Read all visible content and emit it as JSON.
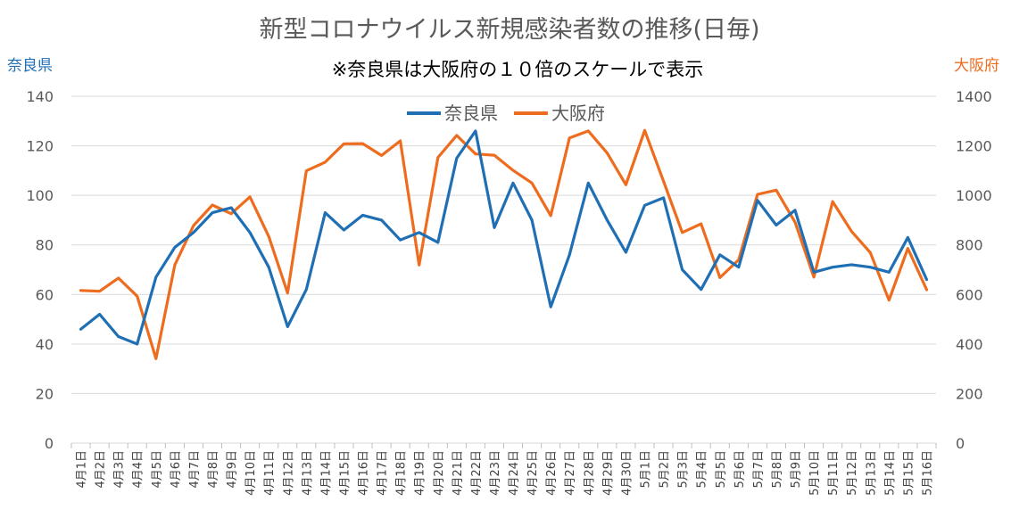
{
  "chart_data": {
    "type": "line",
    "title": "新型コロナウイルス新規感染者数の推移(日毎)",
    "subtitle": "※奈良県は大阪府の１０倍のスケールで表示",
    "y_left_label": "奈良県",
    "y_right_label": "大阪府",
    "y_left_ticks": [
      "0",
      "20",
      "40",
      "60",
      "80",
      "100",
      "120",
      "140"
    ],
    "y_right_ticks": [
      "0",
      "200",
      "400",
      "600",
      "800",
      "1000",
      "1200",
      "1400"
    ],
    "ylim_left": [
      0,
      140
    ],
    "ylim_right": [
      0,
      1400
    ],
    "grid": true,
    "legend_position": "top",
    "categories": [
      "4月1日",
      "4月2日",
      "4月3日",
      "4月4日",
      "4月5日",
      "4月6日",
      "4月7日",
      "4月8日",
      "4月9日",
      "4月10日",
      "4月11日",
      "4月12日",
      "4月13日",
      "4月14日",
      "4月15日",
      "4月16日",
      "4月17日",
      "4月18日",
      "4月19日",
      "4月20日",
      "4月21日",
      "4月22日",
      "4月23日",
      "4月24日",
      "4月25日",
      "4月26日",
      "4月27日",
      "4月28日",
      "4月29日",
      "4月30日",
      "5月1日",
      "5月2日",
      "5月3日",
      "5月4日",
      "5月5日",
      "5月6日",
      "5月7日",
      "5月8日",
      "5月9日",
      "5月10日",
      "5月11日",
      "5月12日",
      "5月13日",
      "5月14日",
      "5月15日",
      "5月16日"
    ],
    "series": [
      {
        "name": "奈良県",
        "axis": "left",
        "color": "#1f6fb4",
        "values": [
          46,
          52,
          43,
          40,
          67,
          79,
          85,
          93,
          95,
          85,
          71,
          47,
          62,
          93,
          86,
          92,
          90,
          82,
          85,
          81,
          115,
          126,
          87,
          105,
          90,
          55,
          76,
          105,
          90,
          77,
          96,
          99,
          70,
          62,
          76,
          71,
          98,
          88,
          94,
          69,
          71,
          72,
          71,
          69,
          83,
          66
        ]
      },
      {
        "name": "大阪府",
        "axis": "right",
        "color": "#ee6c1e",
        "values": [
          616,
          613,
          666,
          593,
          341,
          719,
          878,
          961,
          926,
          994,
          834,
          606,
          1099,
          1134,
          1208,
          1209,
          1161,
          1220,
          719,
          1153,
          1242,
          1167,
          1162,
          1101,
          1050,
          918,
          1232,
          1260,
          1171,
          1043,
          1262,
          1057,
          850,
          885,
          668,
          740,
          1004,
          1021,
          892,
          670,
          975,
          855,
          769,
          577,
          786,
          619
        ]
      }
    ]
  }
}
